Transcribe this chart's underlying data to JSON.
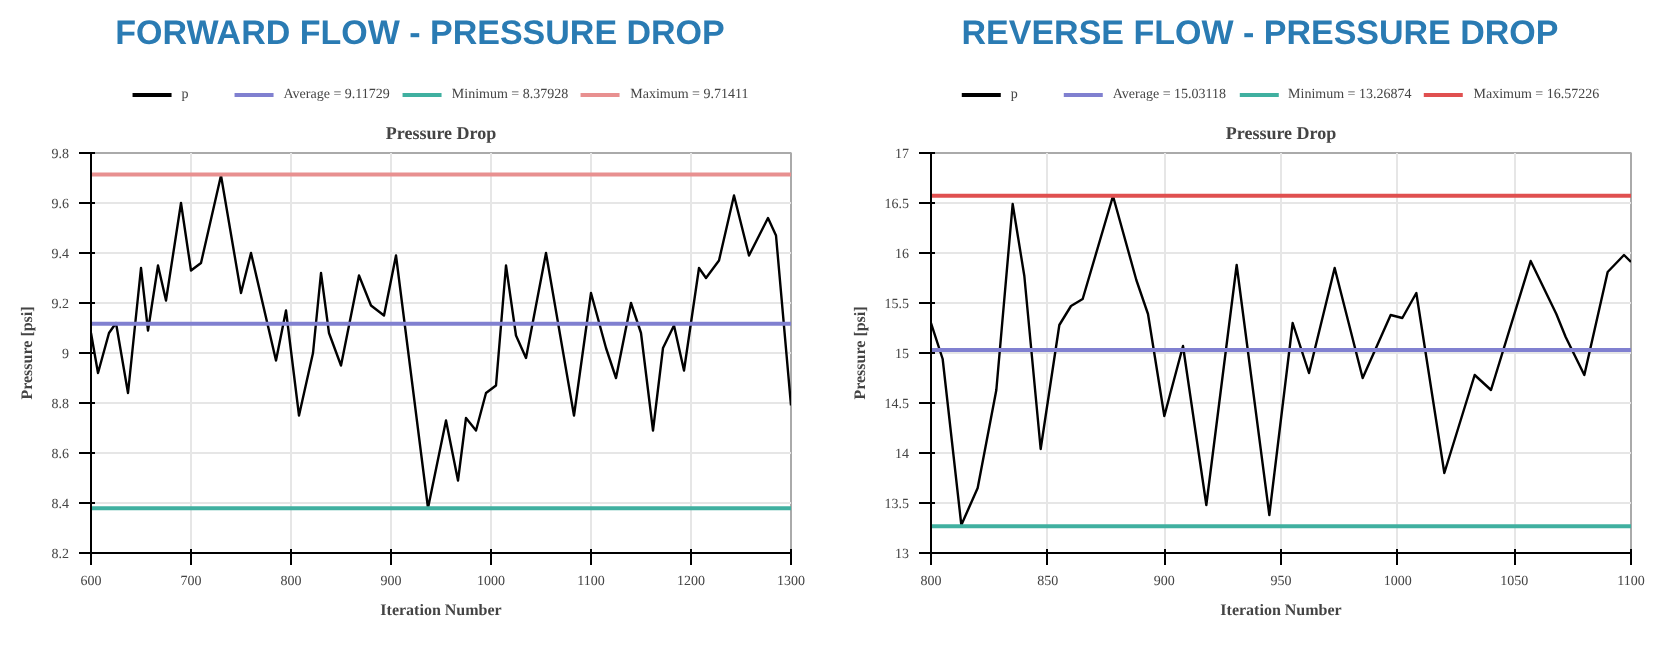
{
  "chart_data": [
    {
      "type": "line",
      "title": "FORWARD FLOW - PRESSURE DROP",
      "subtitle": "Pressure Drop",
      "xlabel": "Iteration Number",
      "ylabel": "Pressure [psi]",
      "xlim": [
        600,
        1300
      ],
      "ylim": [
        8.2,
        9.8
      ],
      "xticks": [
        600,
        700,
        800,
        900,
        1000,
        1100,
        1200,
        1300
      ],
      "yticks": [
        8.2,
        8.4,
        8.6,
        8.8,
        9,
        9.2,
        9.4,
        9.6,
        9.8
      ],
      "grid": true,
      "legend": "top",
      "series": [
        {
          "name": "p",
          "color": "#000000",
          "x": [
            600,
            607,
            618,
            625,
            637,
            650,
            657,
            667,
            675,
            690,
            700,
            710,
            730,
            750,
            760,
            785,
            795,
            808,
            822,
            830,
            838,
            850,
            868,
            880,
            893,
            905,
            937,
            955,
            967,
            975,
            985,
            995,
            1005,
            1015,
            1025,
            1035,
            1055,
            1083,
            1100,
            1115,
            1125,
            1140,
            1150,
            1162,
            1172,
            1183,
            1193,
            1208,
            1215,
            1228,
            1243,
            1258,
            1277,
            1285,
            1300
          ],
          "values": [
            9.08,
            8.92,
            9.08,
            9.12,
            8.84,
            9.34,
            9.09,
            9.35,
            9.21,
            9.6,
            9.33,
            9.36,
            9.71,
            9.24,
            9.4,
            8.97,
            9.17,
            8.75,
            9.0,
            9.32,
            9.08,
            8.95,
            9.31,
            9.19,
            9.15,
            9.39,
            8.38,
            8.73,
            8.49,
            8.74,
            8.69,
            8.84,
            8.87,
            9.35,
            9.07,
            8.98,
            9.4,
            8.75,
            9.24,
            9.02,
            8.9,
            9.2,
            9.08,
            8.69,
            9.02,
            9.11,
            8.93,
            9.34,
            9.3,
            9.37,
            9.63,
            9.39,
            9.54,
            9.47,
            8.79
          ]
        },
        {
          "name": "Average = 9.11729",
          "color": "#8080d0",
          "x": [
            600,
            1300
          ],
          "values": [
            9.11729,
            9.11729
          ]
        },
        {
          "name": "Minimum = 8.37928",
          "color": "#40b0a0",
          "x": [
            600,
            1300
          ],
          "values": [
            8.37928,
            8.37928
          ]
        },
        {
          "name": "Maximum = 9.71411",
          "color": "#e89090",
          "x": [
            600,
            1300
          ],
          "values": [
            9.71411,
            9.71411
          ]
        }
      ]
    },
    {
      "type": "line",
      "title": "REVERSE FLOW - PRESSURE DROP",
      "subtitle": "Pressure Drop",
      "xlabel": "Iteration Number",
      "ylabel": "Pressure [psi]",
      "xlim": [
        800,
        1100
      ],
      "ylim": [
        13,
        17
      ],
      "xticks": [
        800,
        850,
        900,
        950,
        1000,
        1050,
        1100
      ],
      "yticks": [
        13,
        13.5,
        14,
        14.5,
        15,
        15.5,
        16,
        16.5,
        17
      ],
      "grid": true,
      "legend": "top",
      "series": [
        {
          "name": "p",
          "color": "#000000",
          "x": [
            800,
            805,
            813,
            820,
            828,
            835,
            840,
            847,
            855,
            860,
            865,
            878,
            888,
            893,
            900,
            908,
            918,
            931,
            945,
            955,
            962,
            973,
            985,
            997,
            1002,
            1008,
            1020,
            1033,
            1040,
            1057,
            1068,
            1072,
            1080,
            1090,
            1097,
            1100
          ],
          "values": [
            15.3,
            14.94,
            13.28,
            13.65,
            14.63,
            16.49,
            15.77,
            14.04,
            15.28,
            15.47,
            15.54,
            16.57,
            15.73,
            15.39,
            14.37,
            15.07,
            13.48,
            15.88,
            13.38,
            15.3,
            14.8,
            15.85,
            14.75,
            15.38,
            15.35,
            15.6,
            13.8,
            14.78,
            14.63,
            15.92,
            15.39,
            15.16,
            14.78,
            15.81,
            15.98,
            15.91
          ]
        },
        {
          "name": "Average = 15.03118",
          "color": "#8080d0",
          "x": [
            800,
            1100
          ],
          "values": [
            15.03118,
            15.03118
          ]
        },
        {
          "name": "Minimum = 13.26874",
          "color": "#40b0a0",
          "x": [
            800,
            1100
          ],
          "values": [
            13.26874,
            13.26874
          ]
        },
        {
          "name": "Maximum = 16.57226",
          "color": "#e05050",
          "x": [
            800,
            1100
          ],
          "values": [
            16.57226,
            16.57226
          ]
        }
      ]
    }
  ]
}
